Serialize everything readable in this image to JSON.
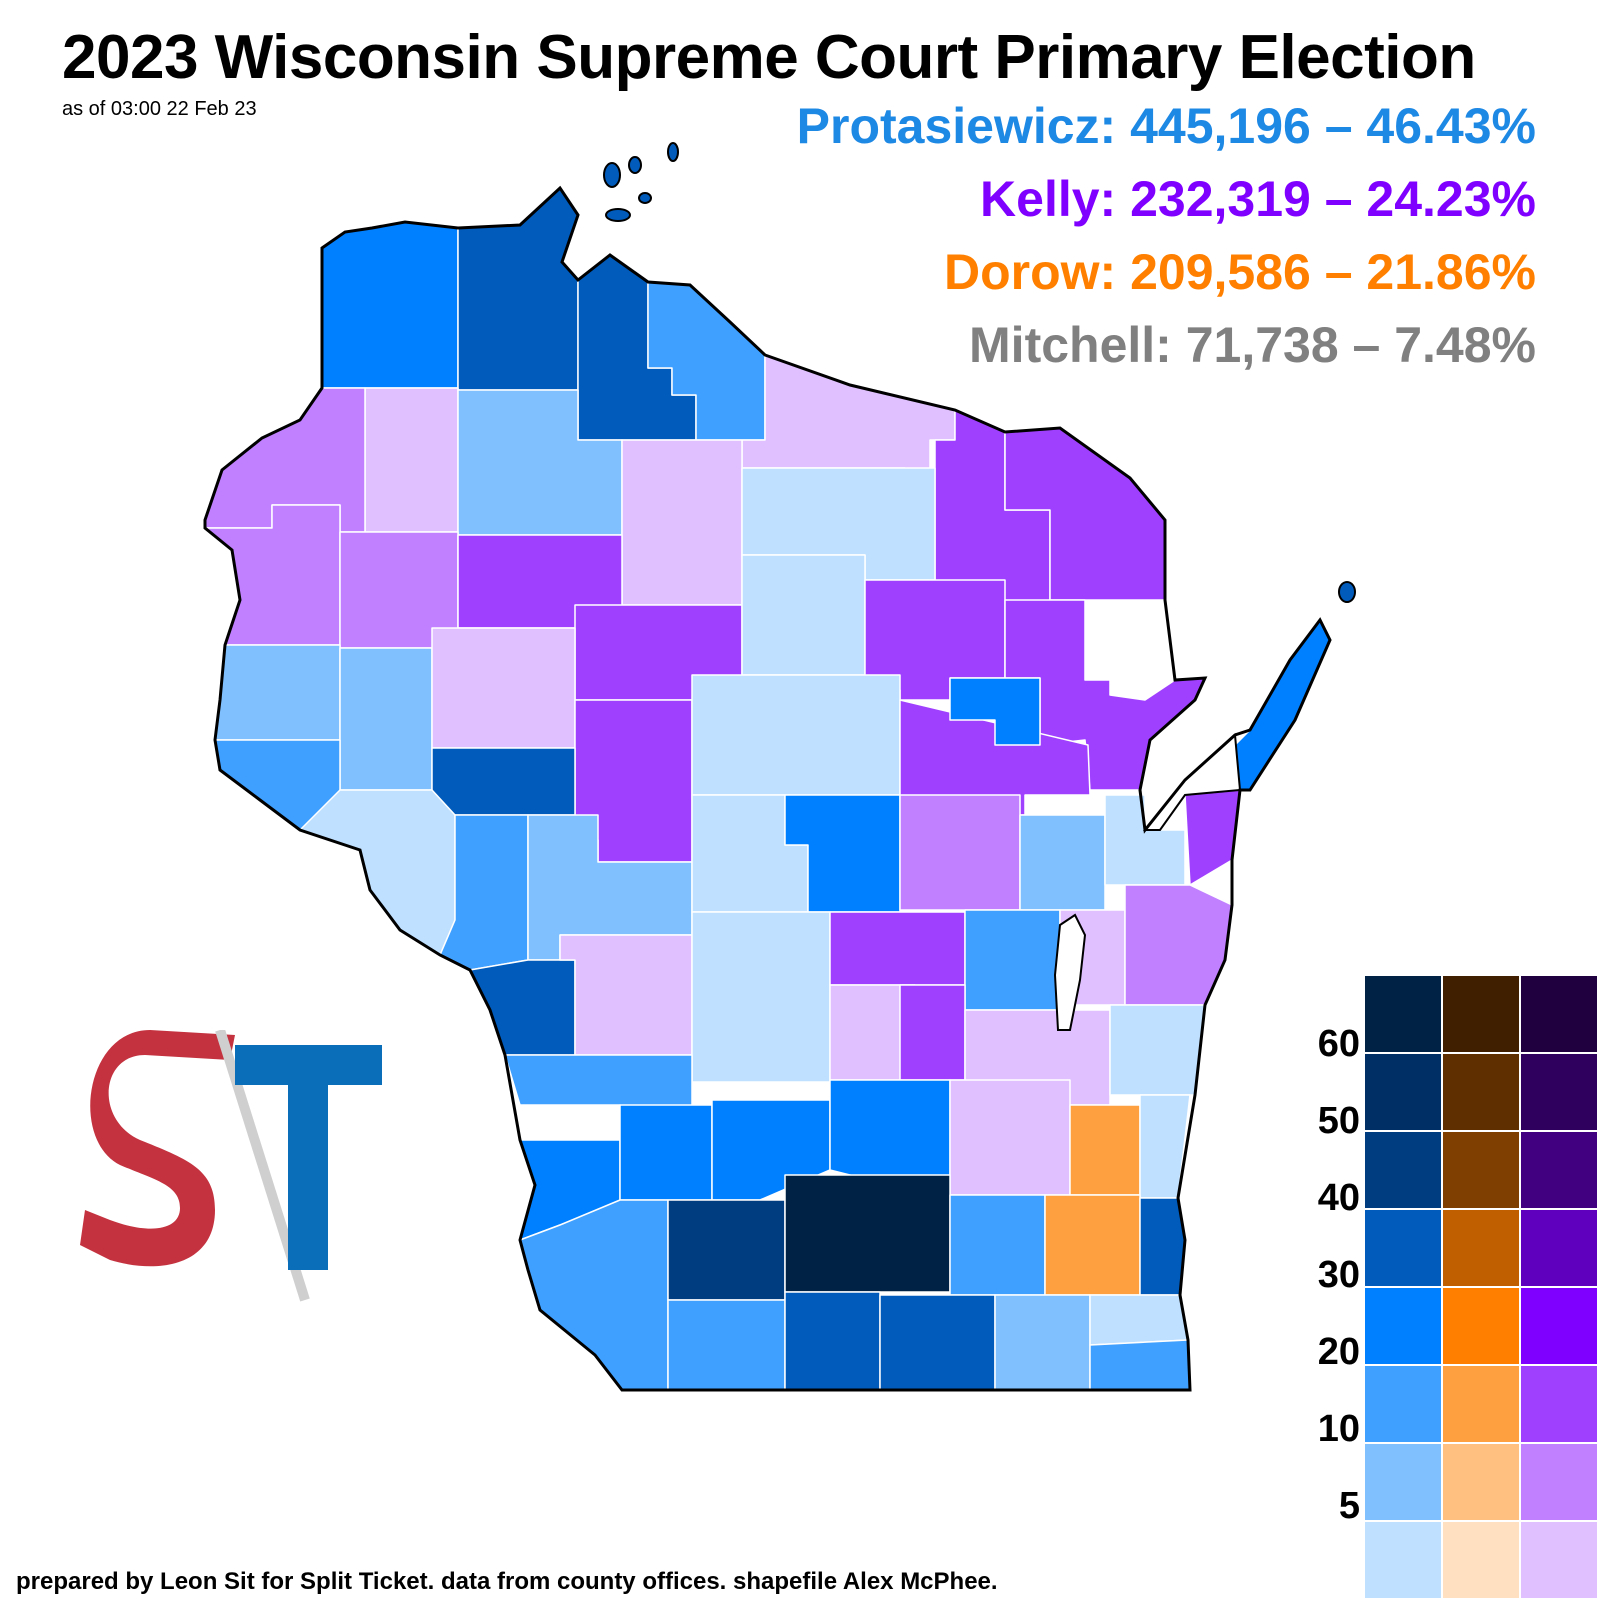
{
  "title": "2023 Wisconsin Supreme Court Primary Election",
  "subtitle": "as of 03:00 22 Feb 23",
  "results": [
    {
      "label": "Protasiewicz: 445,196 – 46.43%",
      "color": "#1E88E5"
    },
    {
      "label": "Kelly: 232,319 – 24.23%",
      "color": "#8000FF"
    },
    {
      "label": "Dorow: 209,586 – 21.86%",
      "color": "#FF8000"
    },
    {
      "label": "Mitchell: 71,738 – 7.48%",
      "color": "#808080"
    }
  ],
  "credit": "prepared by Leon Sit for Split Ticket. data from county offices. shapefile Alex McPhee.",
  "logo": {
    "name": "Split Ticket",
    "letters": "ST"
  },
  "legend": {
    "labels": [
      "60",
      "50",
      "40",
      "30",
      "20",
      "10",
      "5"
    ],
    "blue": [
      "#002244",
      "#002F66",
      "#003C80",
      "#005BBB",
      "#0080FF",
      "#40A0FF",
      "#80C0FF",
      "#C0E0FF"
    ],
    "orange": [
      "#3F1F00",
      "#5F2F00",
      "#7F3F00",
      "#BF5F00",
      "#FF8000",
      "#FFA040",
      "#FFC080",
      "#FFE0C0"
    ],
    "purple": [
      "#20003F",
      "#30005F",
      "#40007F",
      "#6000BF",
      "#8000FF",
      "#A040FF",
      "#C080FF",
      "#E0C0FF"
    ]
  },
  "map": {
    "shades": {
      "p1": "#C0E0FF",
      "p2": "#80C0FF",
      "p3": "#40A0FF",
      "p4": "#0080FF",
      "p5": "#005BBB",
      "p6": "#003C80",
      "p7": "#002244",
      "k1": "#E0C0FF",
      "k2": "#C080FF",
      "k3": "#A040FF",
      "d3": "#FFA040"
    }
  }
}
